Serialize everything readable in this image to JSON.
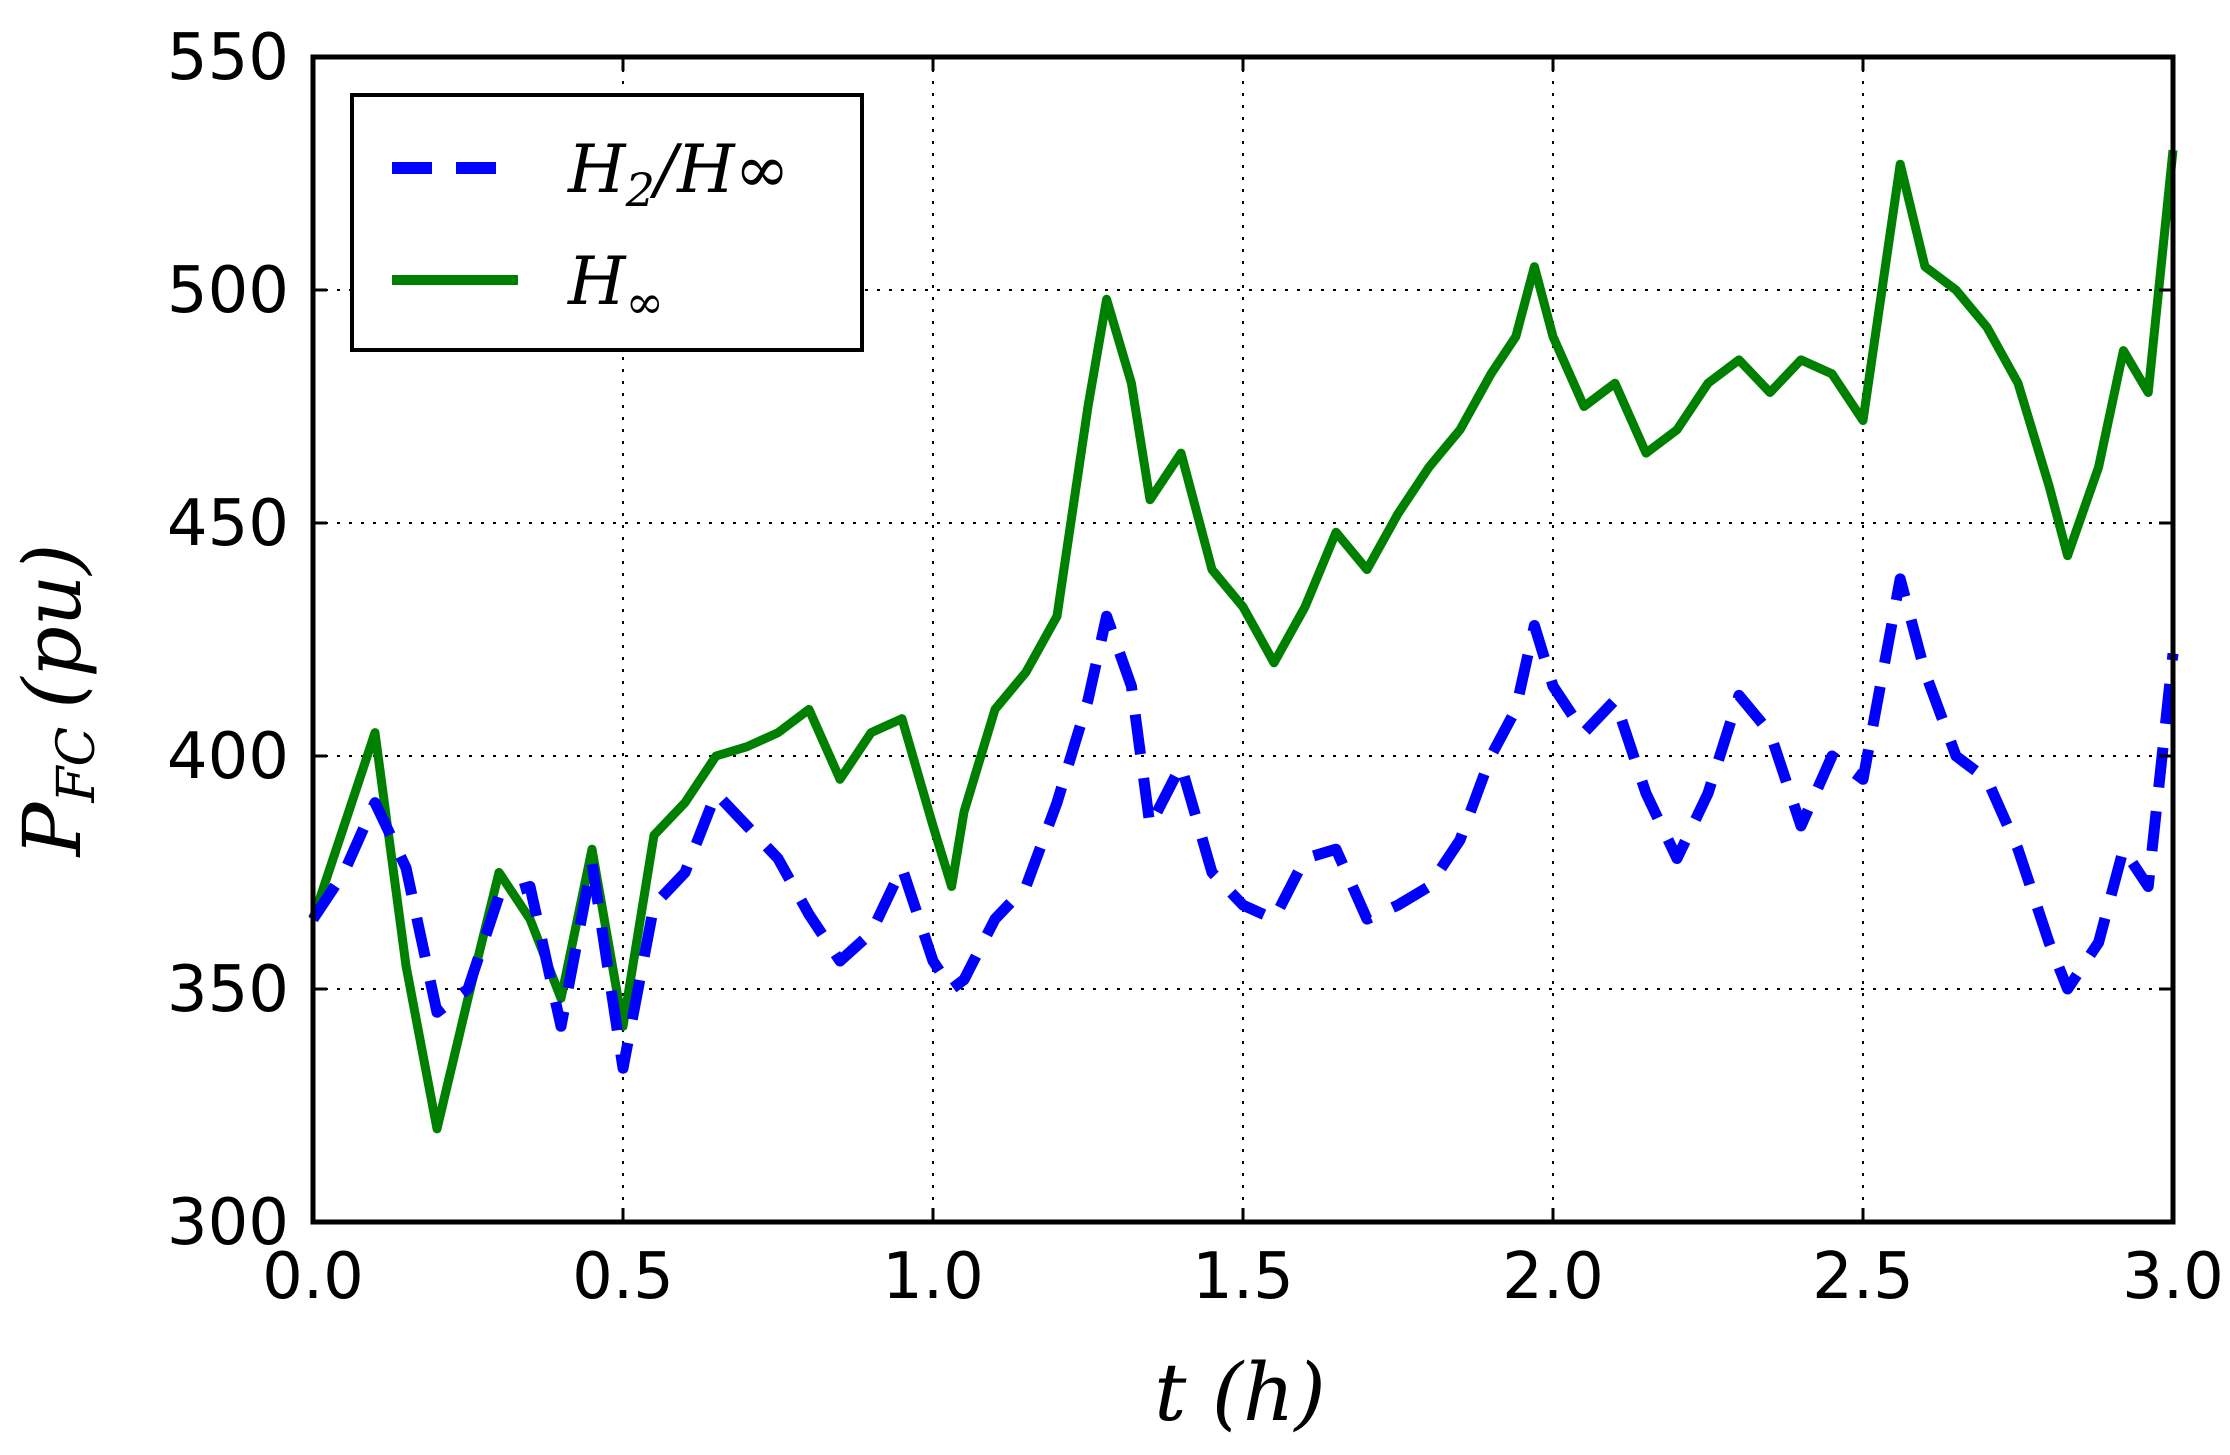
{
  "chart_data": {
    "type": "line",
    "title": "",
    "xlabel": "t (h)",
    "ylabel": "P_FC (pu)",
    "ylabel_main": "P",
    "ylabel_sub": "FC",
    "ylabel_unit": "(pu)",
    "xlim": [
      0.0,
      3.0
    ],
    "ylim": [
      300,
      550
    ],
    "xticks": [
      "0.0",
      "0.5",
      "1.0",
      "1.5",
      "2.0",
      "2.5",
      "3.0"
    ],
    "yticks": [
      "300",
      "350",
      "400",
      "450",
      "500",
      "550"
    ],
    "grid": true,
    "legend_position": "top-left",
    "x": [
      0.0,
      0.05,
      0.1,
      0.15,
      0.2,
      0.25,
      0.3,
      0.35,
      0.4,
      0.45,
      0.5,
      0.55,
      0.6,
      0.65,
      0.7,
      0.75,
      0.8,
      0.85,
      0.9,
      0.95,
      1.0,
      1.03,
      1.05,
      1.1,
      1.15,
      1.2,
      1.25,
      1.28,
      1.32,
      1.35,
      1.4,
      1.45,
      1.5,
      1.55,
      1.6,
      1.65,
      1.7,
      1.75,
      1.8,
      1.85,
      1.9,
      1.94,
      1.97,
      2.0,
      2.05,
      2.1,
      2.15,
      2.2,
      2.25,
      2.3,
      2.35,
      2.4,
      2.45,
      2.5,
      2.56,
      2.6,
      2.65,
      2.7,
      2.75,
      2.8,
      2.83,
      2.88,
      2.92,
      2.96,
      3.0
    ],
    "series": [
      {
        "name": "H₂/H∞",
        "name_base": "H",
        "name_sub": "2",
        "name_tail": "/H∞",
        "color": "#0000ff",
        "style": "dashed",
        "values": [
          365,
          375,
          390,
          376,
          345,
          350,
          370,
          372,
          342,
          377,
          333,
          368,
          375,
          392,
          385,
          378,
          366,
          356,
          362,
          376,
          356,
          350,
          352,
          365,
          372,
          390,
          412,
          430,
          415,
          385,
          398,
          375,
          368,
          365,
          378,
          380,
          365,
          368,
          372,
          382,
          400,
          410,
          428,
          415,
          405,
          412,
          392,
          378,
          392,
          413,
          405,
          385,
          400,
          395,
          438,
          418,
          400,
          395,
          380,
          360,
          350,
          360,
          380,
          372,
          422
        ]
      },
      {
        "name": "H∞",
        "name_base": "H",
        "name_sub": "",
        "name_tail": "∞",
        "color": "#008000",
        "style": "solid",
        "values": [
          365,
          385,
          405,
          355,
          320,
          348,
          375,
          365,
          348,
          380,
          342,
          383,
          390,
          400,
          402,
          405,
          410,
          395,
          405,
          408,
          385,
          372,
          388,
          410,
          418,
          430,
          475,
          498,
          480,
          455,
          465,
          440,
          432,
          420,
          432,
          448,
          440,
          452,
          462,
          470,
          482,
          490,
          505,
          490,
          475,
          480,
          465,
          470,
          480,
          485,
          478,
          485,
          482,
          472,
          527,
          505,
          500,
          492,
          480,
          458,
          443,
          462,
          487,
          478,
          530
        ]
      }
    ]
  }
}
